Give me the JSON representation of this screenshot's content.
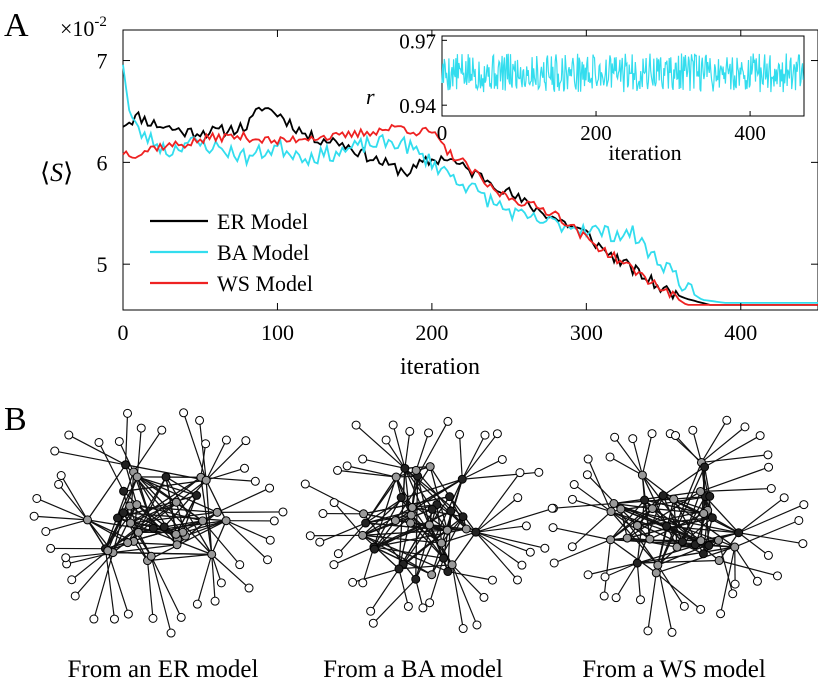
{
  "panel_labels": {
    "a": "A",
    "b": "B"
  },
  "chart_data": [
    {
      "type": "line",
      "xlabel": "iteration",
      "ylabel": "⟨S⟩",
      "ylabel_pre": "⟨",
      "ylabel_var": "S",
      "ylabel_post": "⟩",
      "y_multiplier_base": "×10",
      "y_multiplier_exp": "-2",
      "xlim": [
        0,
        450
      ],
      "ylim": [
        4.55,
        7.3
      ],
      "xticks": [
        0,
        100,
        200,
        300,
        400
      ],
      "yticks": [
        5,
        6,
        7
      ],
      "legend_position": "lower-left",
      "series": [
        {
          "name": "ER Model",
          "color": "#000000",
          "anchors": [
            [
              0,
              6.38
            ],
            [
              10,
              6.45
            ],
            [
              20,
              6.38
            ],
            [
              40,
              6.3
            ],
            [
              60,
              6.3
            ],
            [
              80,
              6.35
            ],
            [
              90,
              6.55
            ],
            [
              100,
              6.48
            ],
            [
              120,
              6.25
            ],
            [
              140,
              6.2
            ],
            [
              160,
              6.05
            ],
            [
              175,
              5.95
            ],
            [
              185,
              5.9
            ],
            [
              195,
              6.0
            ],
            [
              210,
              6.05
            ],
            [
              220,
              5.95
            ],
            [
              240,
              5.8
            ],
            [
              260,
              5.6
            ],
            [
              280,
              5.45
            ],
            [
              300,
              5.3
            ],
            [
              310,
              5.15
            ],
            [
              330,
              4.95
            ],
            [
              350,
              4.75
            ],
            [
              365,
              4.66
            ],
            [
              380,
              4.6
            ],
            [
              450,
              4.6
            ]
          ],
          "noise": 0.06,
          "noise_until": 360,
          "seed": 11
        },
        {
          "name": "BA Model",
          "color": "#33ddee",
          "anchors": [
            [
              0,
              7.0
            ],
            [
              4,
              6.5
            ],
            [
              10,
              6.3
            ],
            [
              30,
              6.1
            ],
            [
              40,
              6.2
            ],
            [
              60,
              6.15
            ],
            [
              80,
              6.05
            ],
            [
              100,
              6.15
            ],
            [
              120,
              6.05
            ],
            [
              140,
              6.1
            ],
            [
              160,
              6.18
            ],
            [
              180,
              6.2
            ],
            [
              200,
              6.0
            ],
            [
              220,
              5.8
            ],
            [
              240,
              5.6
            ],
            [
              260,
              5.45
            ],
            [
              280,
              5.4
            ],
            [
              300,
              5.35
            ],
            [
              315,
              5.3
            ],
            [
              330,
              5.3
            ],
            [
              345,
              5.05
            ],
            [
              355,
              4.95
            ],
            [
              365,
              4.75
            ],
            [
              375,
              4.65
            ],
            [
              390,
              4.62
            ],
            [
              450,
              4.62
            ]
          ],
          "noise": 0.08,
          "noise_until": 370,
          "seed": 23
        },
        {
          "name": "WS Model",
          "color": "#ee2222",
          "anchors": [
            [
              0,
              6.1
            ],
            [
              10,
              6.08
            ],
            [
              20,
              6.15
            ],
            [
              40,
              6.18
            ],
            [
              60,
              6.25
            ],
            [
              80,
              6.25
            ],
            [
              100,
              6.2
            ],
            [
              120,
              6.25
            ],
            [
              140,
              6.25
            ],
            [
              160,
              6.3
            ],
            [
              180,
              6.35
            ],
            [
              190,
              6.3
            ],
            [
              200,
              6.3
            ],
            [
              210,
              6.1
            ],
            [
              220,
              6.0
            ],
            [
              240,
              5.72
            ],
            [
              260,
              5.6
            ],
            [
              280,
              5.5
            ],
            [
              300,
              5.25
            ],
            [
              320,
              5.05
            ],
            [
              340,
              4.85
            ],
            [
              355,
              4.7
            ],
            [
              365,
              4.6
            ],
            [
              450,
              4.6
            ]
          ],
          "noise": 0.045,
          "noise_until": 360,
          "seed": 37
        }
      ]
    },
    {
      "type": "line",
      "name": "inset",
      "xlabel": "iteration",
      "ylabel": "r",
      "xlim": [
        0,
        470
      ],
      "ylim": [
        0.935,
        0.972
      ],
      "xticks": [
        0,
        200,
        400
      ],
      "yticks": [
        0.94,
        0.97
      ],
      "ytick_labels": [
        "0.94",
        "0.97"
      ],
      "series": [
        {
          "name": "r",
          "color": "#33ddee",
          "mean": 0.955,
          "amplitude": 0.009,
          "points": 470,
          "seed": 5
        }
      ]
    }
  ],
  "networks": [
    {
      "caption": "From an ER model",
      "seed": 101
    },
    {
      "caption": "From a BA model",
      "seed": 202
    },
    {
      "caption": "From a WS model",
      "seed": 303
    }
  ]
}
